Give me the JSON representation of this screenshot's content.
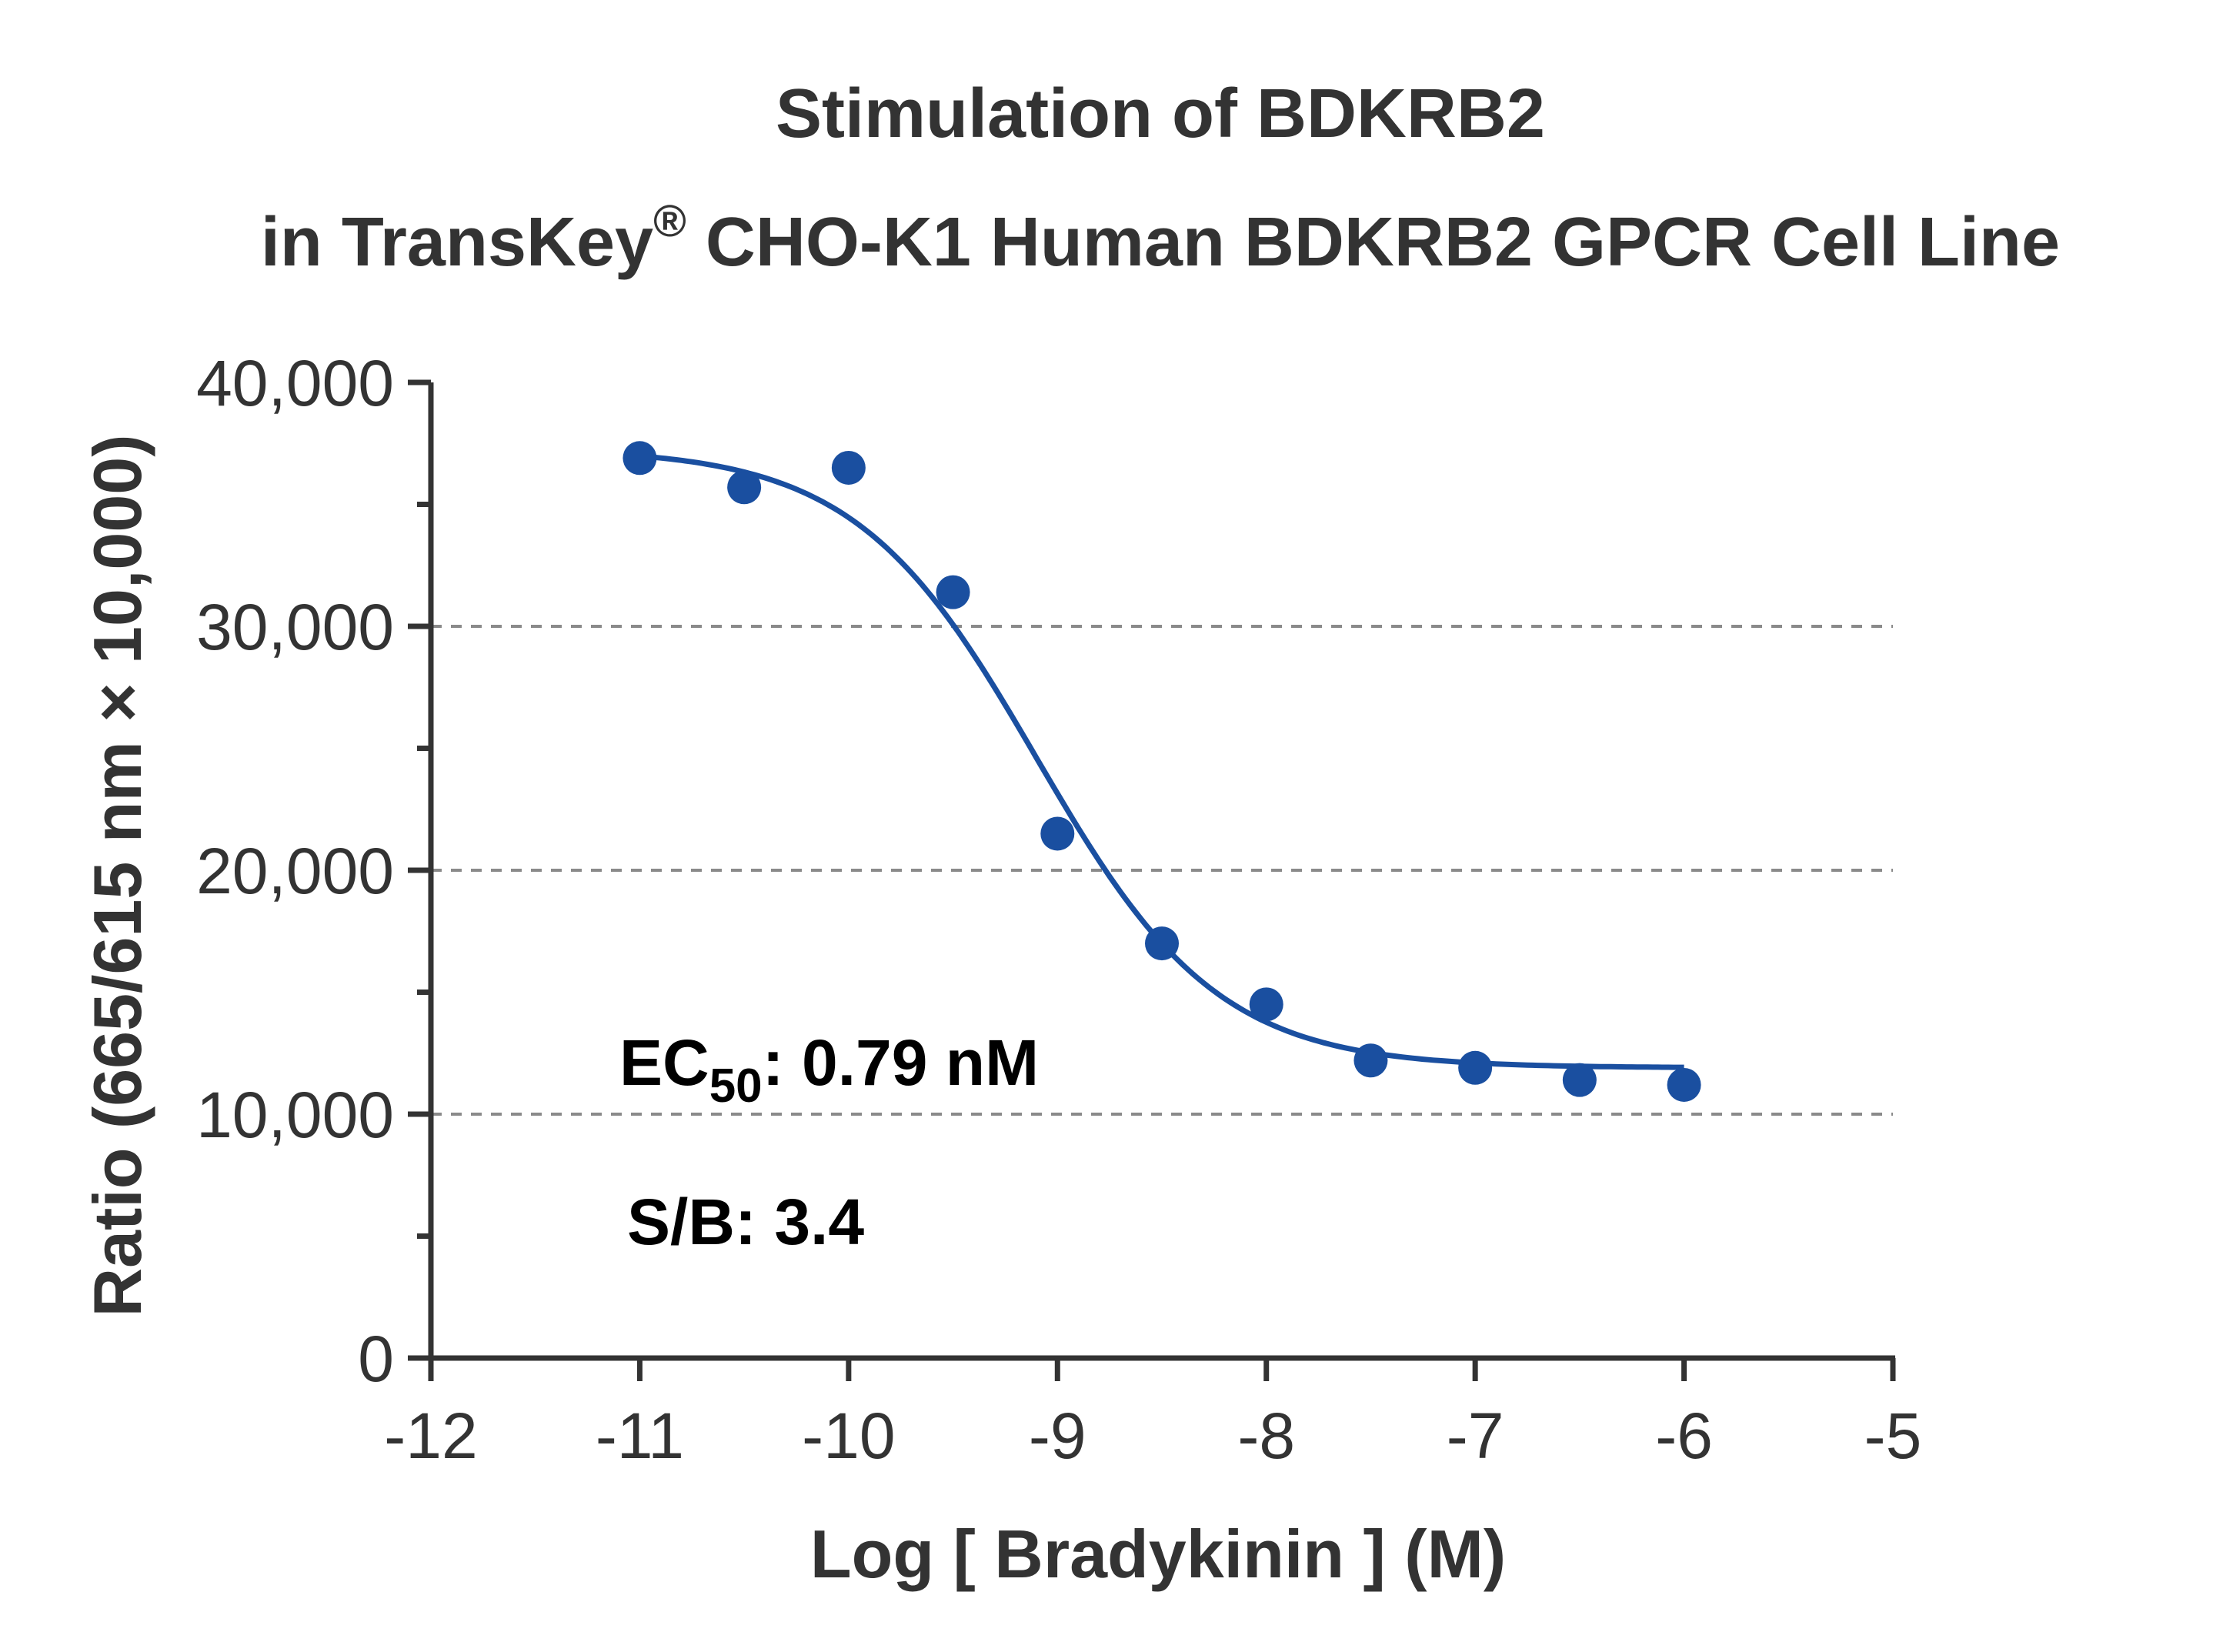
{
  "chart_data": {
    "type": "scatter",
    "title_line1": "Stimulation of  BDKRB2",
    "title_line2_pre": "in TransKey",
    "title_line2_sup": "®",
    "title_line2_post": " CHO-K1 Human BDKRB2 GPCR Cell Line",
    "xlabel": "Log [ Bradykinin ]  (M)",
    "ylabel": "Ratio (665/615 nm × 10,000)",
    "xlim": [
      -12,
      -5
    ],
    "ylim": [
      0,
      40000
    ],
    "x_ticks": [
      -12,
      -11,
      -10,
      -9,
      -8,
      -7,
      -6,
      -5
    ],
    "x_tick_labels": [
      "-12",
      "-11",
      "-10",
      "-9",
      "-8",
      "-7",
      "-6",
      "-5"
    ],
    "y_ticks": [
      0,
      10000,
      20000,
      30000,
      40000
    ],
    "y_tick_labels": [
      "0",
      "10,000",
      "20,000",
      "30,000",
      "40,000"
    ],
    "y_minor_ticks": [
      5000,
      15000,
      25000,
      35000
    ],
    "gridlines_y": [
      10000,
      20000,
      30000
    ],
    "grid": "dashed horizontal at 10,000 / 20,000 / 30,000",
    "series": [
      {
        "x": [
          -11,
          -10.5,
          -10,
          -9.5,
          -9,
          -8.5,
          -8,
          -7.5,
          -7,
          -6.5,
          -6
        ],
        "y": [
          36900,
          35700,
          36500,
          31400,
          21500,
          17000,
          14500,
          12200,
          11900,
          11400,
          11200
        ],
        "color": "#1a4fa0"
      }
    ],
    "fit": {
      "model": "four-parameter logistic",
      "top": 37300,
      "bottom": 11900,
      "log_ec50": -9.1,
      "hill_slope": -1.0,
      "x_range": [
        -11,
        -6
      ],
      "color": "#1a4fa0"
    },
    "annotations": {
      "ec50_prefix": "EC",
      "ec50_sub": "50",
      "ec50_value": ": 0.79 nM",
      "sb": "S/B: 3.4"
    }
  }
}
